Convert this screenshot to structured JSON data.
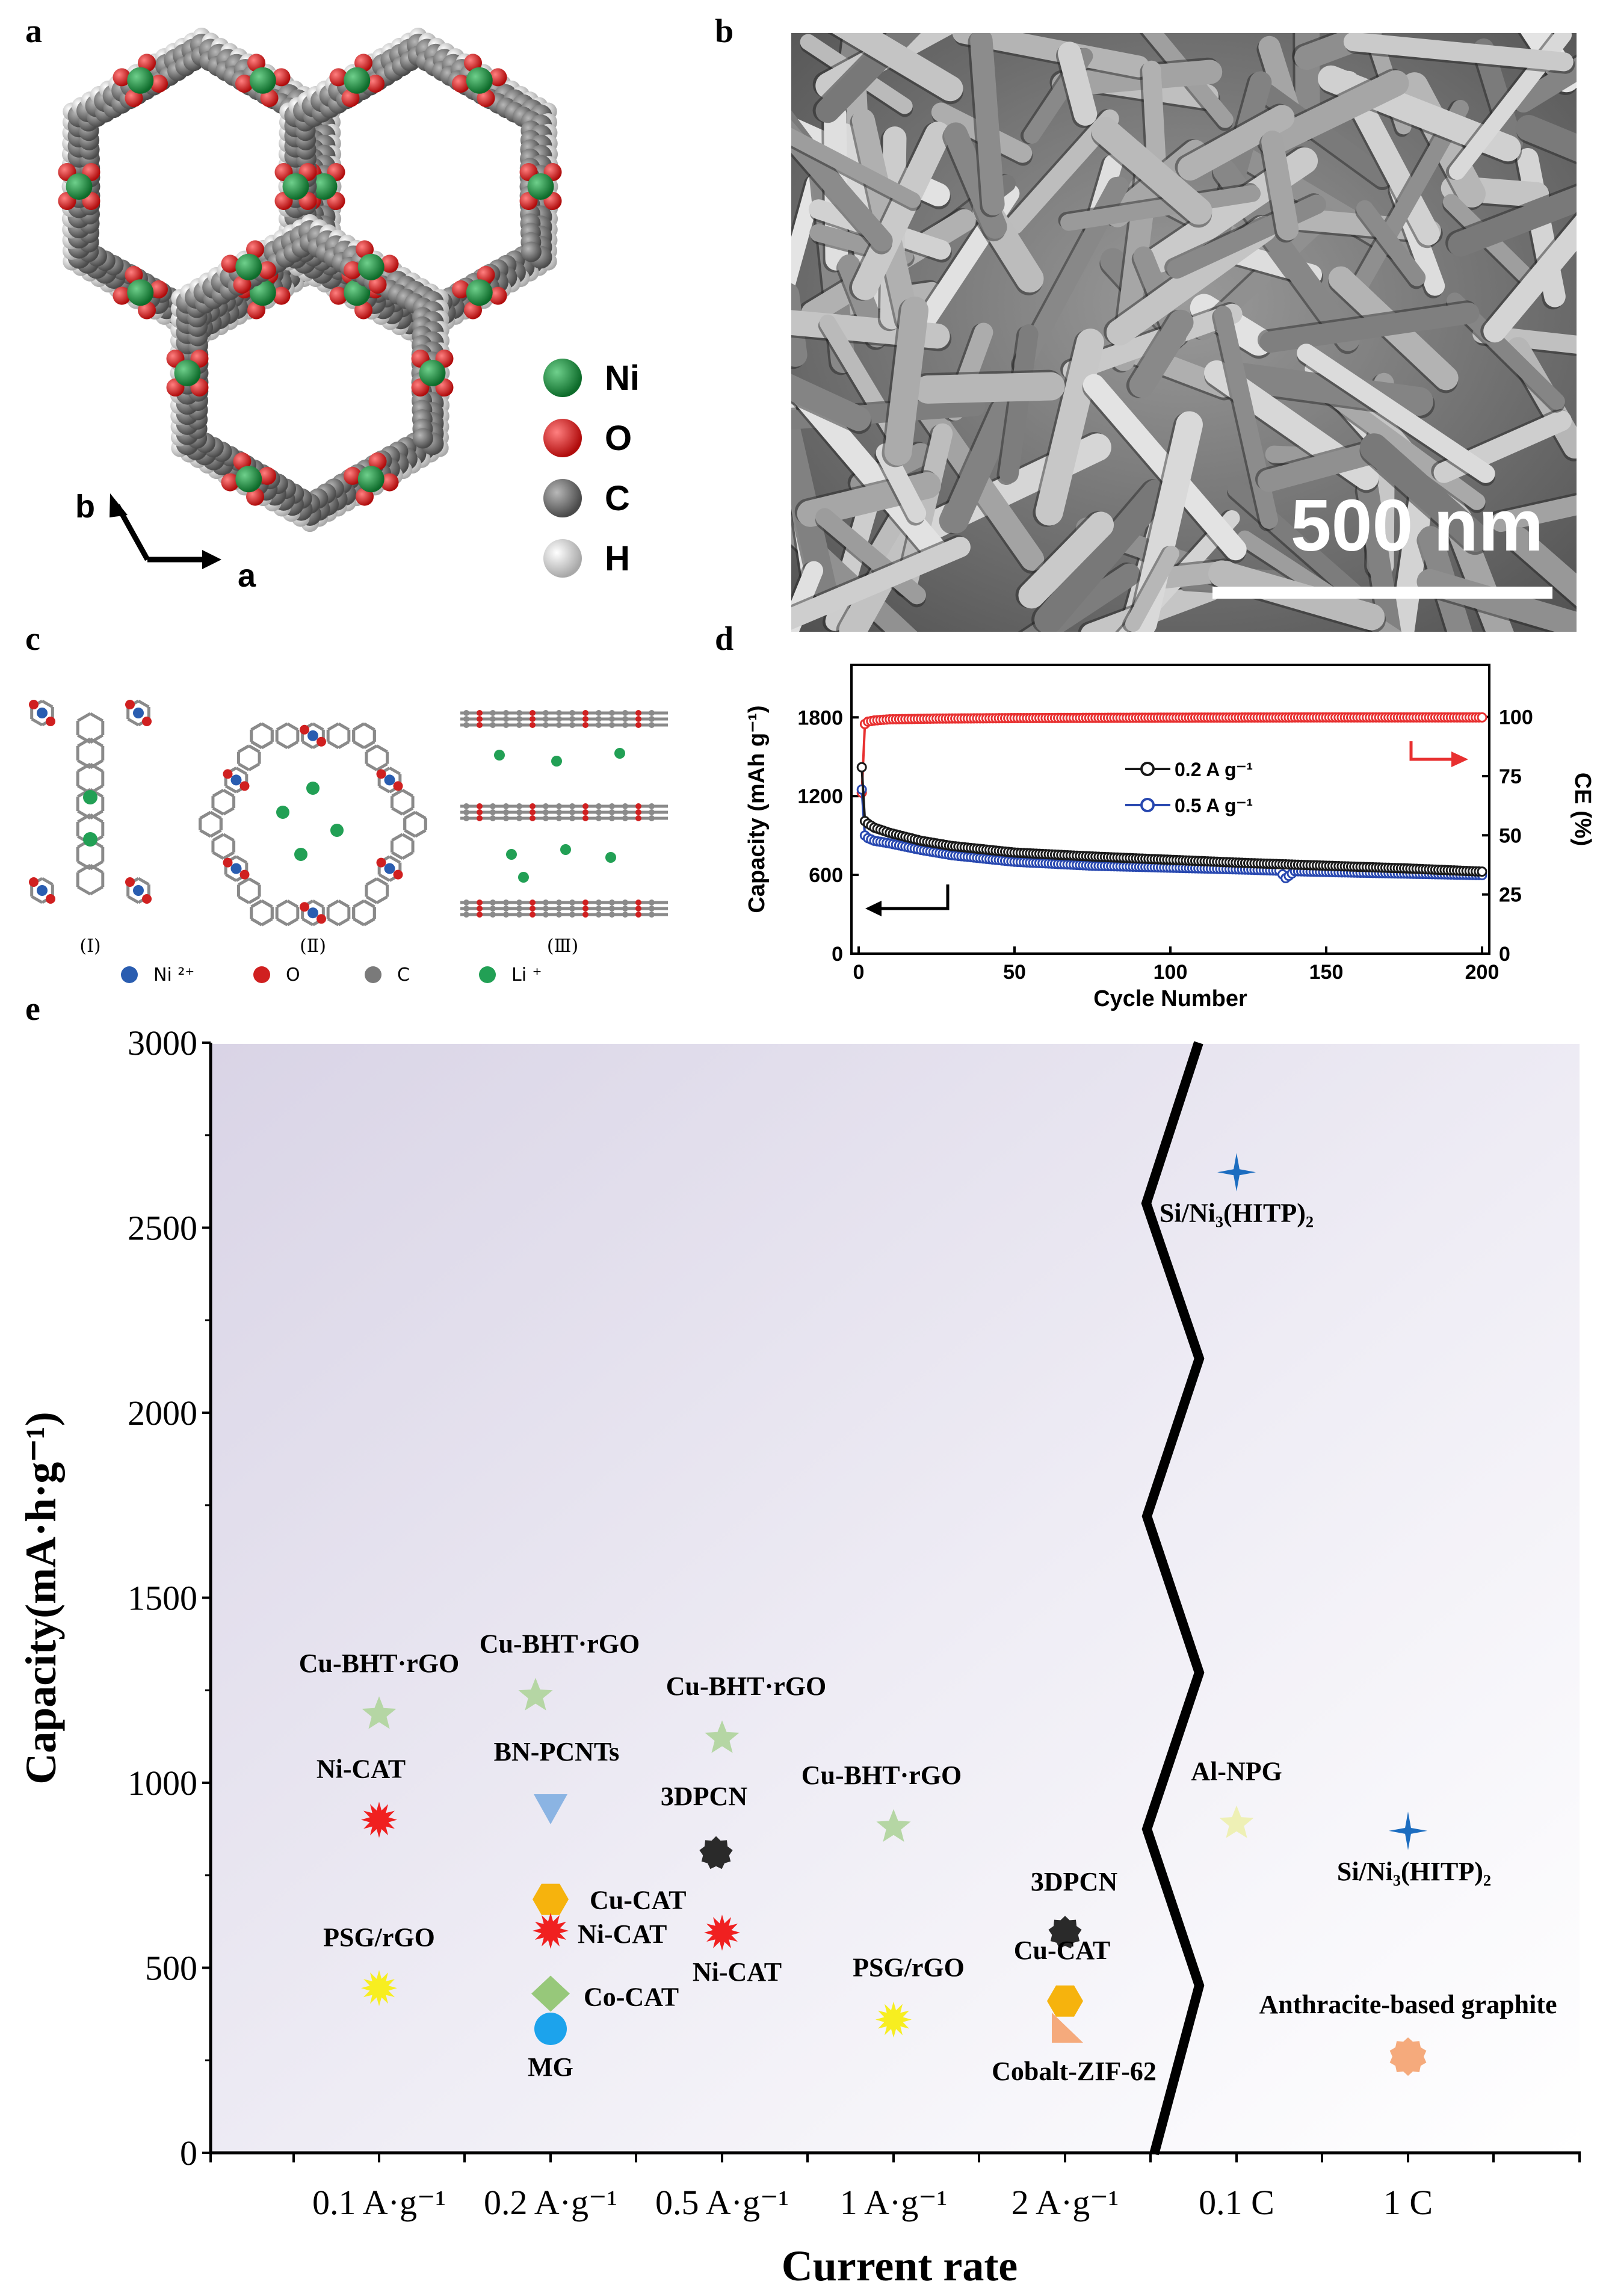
{
  "panels": {
    "a": "a",
    "b": "b",
    "c": "c",
    "d": "d",
    "e": "e"
  },
  "panel_a": {
    "axes": {
      "b": "b",
      "a": "a"
    },
    "legend": [
      {
        "label": "Ni",
        "color": "#1e8a3c"
      },
      {
        "label": "O",
        "color": "#e02020"
      },
      {
        "label": "C",
        "color": "#6e6e6e"
      },
      {
        "label": "H",
        "color": "#e6e6e6"
      }
    ]
  },
  "panel_b": {
    "scale_bar": "500 nm"
  },
  "panel_c": {
    "structures": [
      "(Ⅰ)",
      "(Ⅱ)",
      "(Ⅲ)"
    ],
    "legend": [
      {
        "label": "Ni ²⁺",
        "color": "#2a5db0"
      },
      {
        "label": "O",
        "color": "#d02020"
      },
      {
        "label": "C",
        "color": "#7a7a7a"
      },
      {
        "label": "Li ⁺",
        "color": "#22a055"
      }
    ]
  },
  "chart_data": [
    {
      "type": "line",
      "panel": "d",
      "xlabel": "Cycle Number",
      "ylabel": "Capacity (mAh g⁻¹)",
      "y2label": "CE (%)",
      "xlim": [
        0,
        200
      ],
      "ylim": [
        0,
        2200
      ],
      "y2lim": [
        0,
        122
      ],
      "xticks": [
        0,
        50,
        100,
        150,
        200
      ],
      "yticks": [
        0,
        600,
        1200,
        1800
      ],
      "y2ticks": [
        0,
        25,
        50,
        75,
        100
      ],
      "series": [
        {
          "name": "0.2 A g⁻¹",
          "axis": "left",
          "color": "#1a1a1a",
          "x": [
            1,
            2,
            3,
            5,
            10,
            20,
            30,
            50,
            75,
            100,
            125,
            150,
            175,
            200
          ],
          "y": [
            1420,
            1010,
            990,
            960,
            920,
            860,
            820,
            770,
            740,
            715,
            690,
            670,
            650,
            625
          ]
        },
        {
          "name": "0.5 A g⁻¹",
          "axis": "left",
          "color": "#2848b0",
          "x": [
            1,
            2,
            3,
            5,
            10,
            20,
            30,
            50,
            75,
            100,
            125,
            135,
            137,
            140,
            150,
            175,
            200
          ],
          "y": [
            1250,
            900,
            880,
            860,
            840,
            790,
            750,
            700,
            670,
            655,
            640,
            632,
            575,
            628,
            622,
            610,
            598
          ]
        },
        {
          "name": "CE",
          "axis": "right",
          "color": "#e83030",
          "x": [
            1,
            2,
            3,
            5,
            10,
            25,
            50,
            100,
            150,
            200
          ],
          "y": [
            68,
            97,
            98,
            98.5,
            99,
            99.3,
            99.5,
            99.7,
            99.8,
            99.8
          ]
        }
      ]
    },
    {
      "type": "scatter",
      "panel": "e",
      "xlabel": "Current rate",
      "ylabel": "Capacity(mA·h·g⁻¹)",
      "ylim": [
        0,
        3000
      ],
      "yticks": [
        0,
        500,
        1000,
        1500,
        2000,
        2500,
        3000
      ],
      "categories": [
        "0.1 A·g⁻¹",
        "0.2 A·g⁻¹",
        "0.5 A·g⁻¹",
        "1 A·g⁻¹",
        "2 A·g⁻¹",
        "0.1 C",
        "1 C"
      ],
      "points": [
        {
          "label": "Cu-BHT·rGO",
          "cat": 0,
          "y": 1185,
          "marker": "star",
          "color": "#b5d6a4"
        },
        {
          "label": "Ni-CAT",
          "cat": 0,
          "y": 900,
          "marker": "burst",
          "color": "#f02020"
        },
        {
          "label": "PSG/rGO",
          "cat": 0,
          "y": 445,
          "marker": "burst",
          "color": "#f7ee20"
        },
        {
          "label": "Cu-BHT·rGO",
          "cat": 1,
          "y": 1235,
          "marker": "star",
          "color": "#b5d6a4"
        },
        {
          "label": "BN-PCNTs",
          "cat": 1,
          "y": 930,
          "marker": "triangle",
          "color": "#8bb4e3"
        },
        {
          "label": "Cu-CAT",
          "cat": 1,
          "y": 685,
          "marker": "hexagon",
          "color": "#f6b30d"
        },
        {
          "label": "Ni-CAT",
          "cat": 1,
          "y": 600,
          "marker": "burst",
          "color": "#f02020"
        },
        {
          "label": "Co-CAT",
          "cat": 1,
          "y": 430,
          "marker": "diamond",
          "color": "#97c87a"
        },
        {
          "label": "MG",
          "cat": 1,
          "y": 335,
          "marker": "circle",
          "color": "#1ca3ec"
        },
        {
          "label": "Cu-BHT·rGO",
          "cat": 2,
          "y": 1120,
          "marker": "star",
          "color": "#b5d6a4"
        },
        {
          "label": "3DPCN",
          "cat": 2,
          "y": 810,
          "marker": "blob",
          "color": "#2a2a2a"
        },
        {
          "label": "Ni-CAT",
          "cat": 2,
          "y": 595,
          "marker": "burst",
          "color": "#f02020"
        },
        {
          "label": "Cu-BHT·rGO",
          "cat": 3,
          "y": 880,
          "marker": "star",
          "color": "#b5d6a4"
        },
        {
          "label": "PSG/rGO",
          "cat": 3,
          "y": 360,
          "marker": "burst",
          "color": "#f7ee20"
        },
        {
          "label": "3DPCN",
          "cat": 4,
          "y": 595,
          "marker": "blob",
          "color": "#2a2a2a"
        },
        {
          "label": "Cu-CAT",
          "cat": 4,
          "y": 410,
          "marker": "hexagon",
          "color": "#f6b30d"
        },
        {
          "label": "Cobalt-ZIF-62",
          "cat": 4,
          "y": 330,
          "marker": "wedge",
          "color": "#f5aa7c"
        },
        {
          "label": "Si/Ni₃(HITP)₂",
          "cat": 5,
          "y": 2650,
          "marker": "sparkle",
          "color": "#1c6dc0"
        },
        {
          "label": "Al-NPG",
          "cat": 5,
          "y": 890,
          "marker": "star",
          "color": "#eef0b5"
        },
        {
          "label": "Si/Ni₃(HITP)₂",
          "cat": 6,
          "y": 870,
          "marker": "sparkle",
          "color": "#1c6dc0"
        },
        {
          "label": "Anthracite-based graphite",
          "cat": 6,
          "y": 260,
          "marker": "scallop",
          "color": "#f5aa7c"
        }
      ]
    }
  ]
}
